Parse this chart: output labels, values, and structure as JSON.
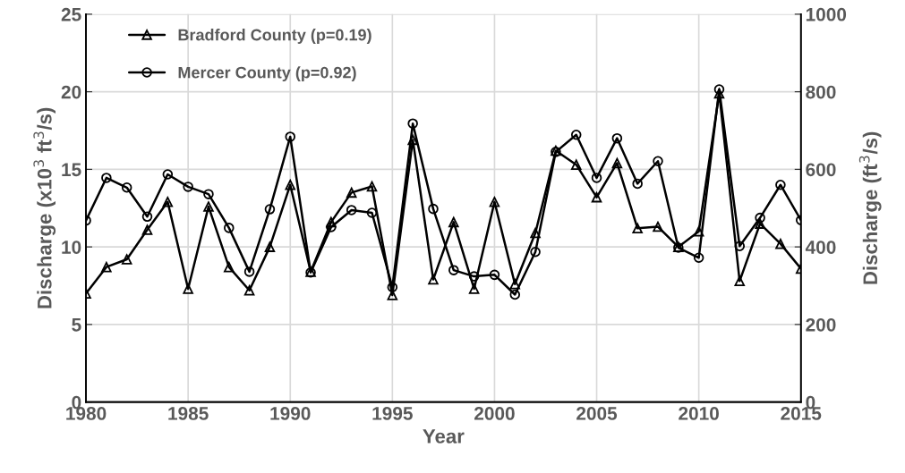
{
  "chart_data": {
    "type": "line",
    "xlabel": "Year",
    "ylabel": "Discharge (x10$^{3}$ ft$^{3}$/s)",
    "y2label": "Discharge (ft$^{3}$/s)",
    "x": [
      1980,
      1981,
      1982,
      1983,
      1984,
      1985,
      1986,
      1987,
      1988,
      1989,
      1990,
      1991,
      1992,
      1993,
      1994,
      1995,
      1996,
      1997,
      1998,
      1999,
      2000,
      2001,
      2002,
      2003,
      2004,
      2005,
      2006,
      2007,
      2008,
      2009,
      2010,
      2011,
      2012,
      2013,
      2014,
      2015
    ],
    "series": [
      {
        "name": "Bradford County (p=0.19)",
        "color": "#000000",
        "marker": "triangle",
        "values": [
          7.0,
          8.7,
          9.2,
          11.1,
          12.9,
          7.3,
          12.6,
          8.7,
          7.2,
          10.0,
          14.0,
          8.4,
          11.6,
          13.5,
          13.9,
          6.9,
          16.9,
          7.9,
          11.6,
          7.3,
          12.9,
          7.6,
          10.9,
          16.2,
          15.3,
          13.2,
          15.4,
          11.2,
          11.3,
          10.0,
          11.0,
          19.9,
          7.8,
          11.5,
          10.2,
          8.6
        ]
      },
      {
        "name": "Mercer County (p=0.92)",
        "color": "#000000",
        "marker": "circle",
        "axis": "y2",
        "values": [
          468,
          578,
          553,
          478,
          587,
          555,
          536,
          449,
          336,
          497,
          684,
          334,
          451,
          495,
          488,
          296,
          718,
          498,
          340,
          324,
          328,
          277,
          387,
          645,
          689,
          578,
          680,
          563,
          621,
          398,
          372,
          806,
          402,
          475,
          560,
          469
        ]
      }
    ],
    "xlim": [
      1980,
      2015
    ],
    "xticks": [
      1980,
      1985,
      1990,
      1995,
      2000,
      2005,
      2010,
      2015
    ],
    "ylim": [
      0,
      25
    ],
    "yticks": [
      0,
      5,
      10,
      15,
      20,
      25
    ],
    "y2lim": [
      0,
      1000
    ],
    "y2ticks": [
      0,
      200,
      400,
      600,
      800,
      1000
    ],
    "grid": true,
    "legend": "top left",
    "line_style": "solid"
  }
}
